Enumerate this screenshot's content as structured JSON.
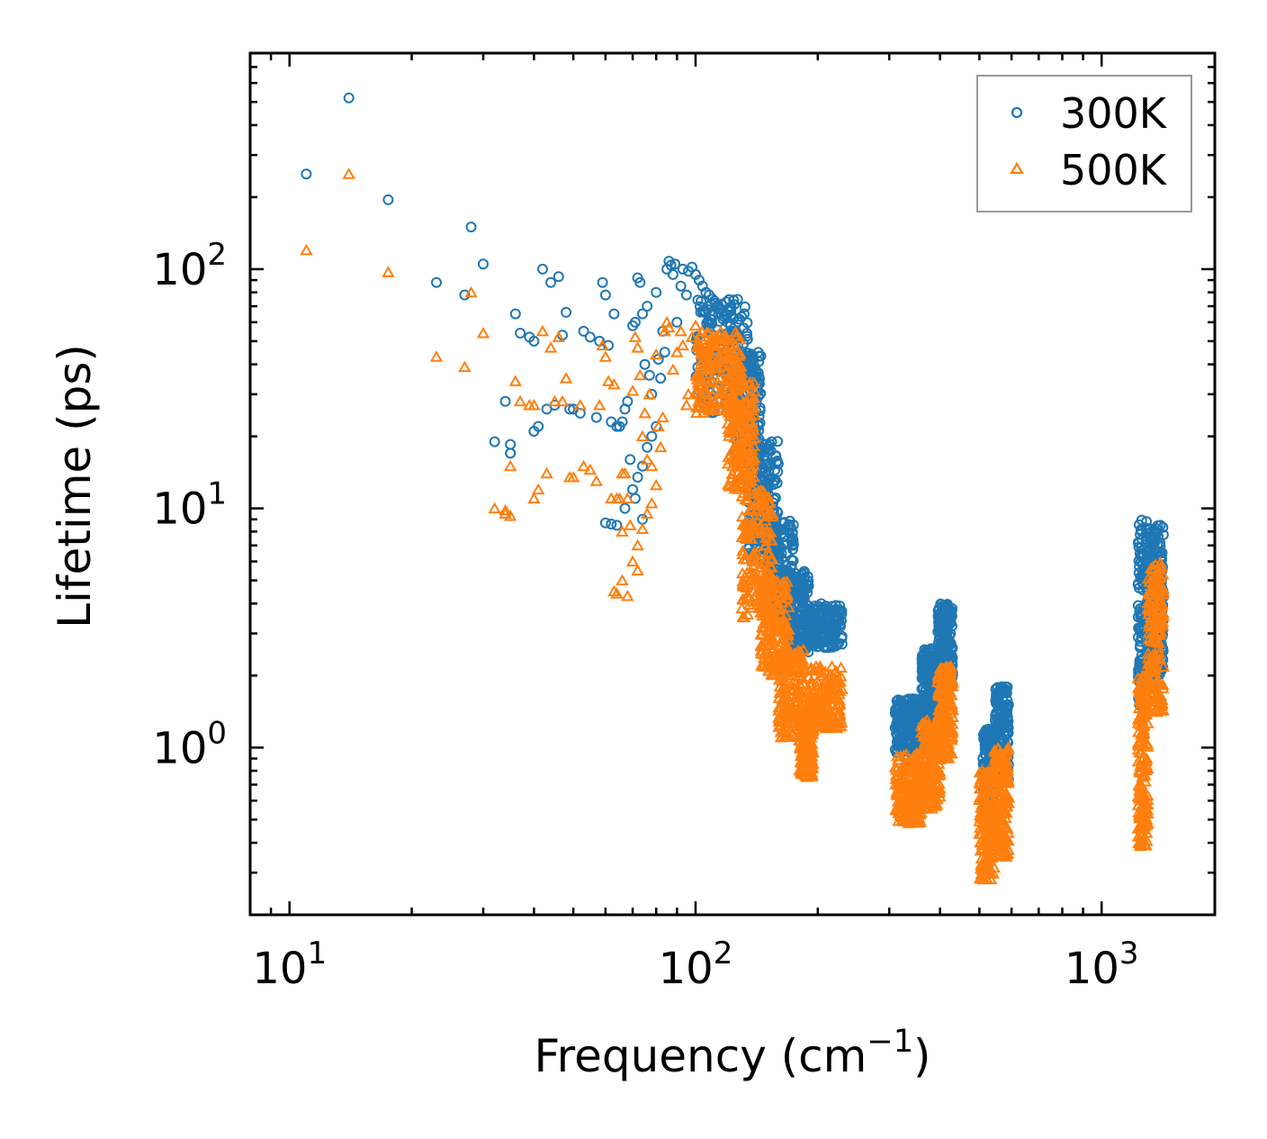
{
  "chart_data": {
    "type": "scatter",
    "xscale": "log",
    "yscale": "log",
    "xlabel": "Frequency (cm",
    "xlabel_sup": "−1",
    "xlabel_tail": ")",
    "ylabel": "Lifetime (ps)",
    "xlim": [
      8,
      1900
    ],
    "ylim": [
      0.2,
      800
    ],
    "x_ticks": [
      {
        "value": 10,
        "base": "10",
        "exp": "1"
      },
      {
        "value": 100,
        "base": "10",
        "exp": "2"
      },
      {
        "value": 1000,
        "base": "10",
        "exp": "3"
      }
    ],
    "y_ticks": [
      {
        "value": 1,
        "base": "10",
        "exp": "0"
      },
      {
        "value": 10,
        "base": "10",
        "exp": "1"
      },
      {
        "value": 100,
        "base": "10",
        "exp": "2"
      }
    ],
    "legend_position": "top-right",
    "series": [
      {
        "name": "300K",
        "marker": "circle",
        "color": "#1f77b4",
        "points": [
          [
            11,
            250
          ],
          [
            14,
            520
          ],
          [
            17.5,
            195
          ],
          [
            23,
            88
          ],
          [
            27,
            78
          ],
          [
            28,
            150
          ],
          [
            30,
            105
          ],
          [
            32,
            19
          ],
          [
            34,
            28
          ],
          [
            35,
            17
          ],
          [
            35,
            18.5
          ],
          [
            36,
            65
          ],
          [
            37,
            54
          ],
          [
            39,
            52
          ],
          [
            40,
            50
          ],
          [
            40,
            21
          ],
          [
            41,
            22
          ],
          [
            42,
            100
          ],
          [
            43,
            26
          ],
          [
            44,
            88
          ],
          [
            45,
            27
          ],
          [
            46,
            93
          ],
          [
            47,
            53
          ],
          [
            48,
            66
          ],
          [
            49,
            26
          ],
          [
            50,
            26
          ],
          [
            52,
            25
          ],
          [
            53,
            55
          ],
          [
            55,
            52
          ],
          [
            57,
            24
          ],
          [
            58,
            50
          ],
          [
            59,
            88
          ],
          [
            60,
            78
          ],
          [
            61,
            48
          ],
          [
            62,
            23
          ],
          [
            63,
            65
          ],
          [
            64,
            22
          ],
          [
            65,
            22
          ],
          [
            66,
            23
          ],
          [
            67,
            26
          ],
          [
            68,
            28
          ],
          [
            70,
            58
          ],
          [
            71,
            60
          ],
          [
            72,
            92
          ],
          [
            73,
            88
          ],
          [
            74,
            65
          ],
          [
            75,
            40
          ],
          [
            76,
            70
          ],
          [
            77,
            36
          ],
          [
            78,
            30
          ],
          [
            80,
            80
          ],
          [
            81,
            42
          ],
          [
            82,
            35
          ],
          [
            83,
            55
          ],
          [
            84,
            45
          ],
          [
            85,
            100
          ],
          [
            86,
            108
          ],
          [
            87,
            104
          ],
          [
            88,
            95
          ],
          [
            89,
            105
          ],
          [
            90,
            60
          ],
          [
            92,
            85
          ],
          [
            93,
            100
          ],
          [
            95,
            78
          ],
          [
            96,
            98
          ],
          [
            98,
            102
          ],
          [
            100,
            95
          ],
          [
            102,
            90
          ],
          [
            104,
            85
          ],
          [
            106,
            80
          ],
          [
            108,
            78
          ],
          [
            110,
            75
          ],
          [
            112,
            72
          ],
          [
            115,
            68
          ],
          [
            118,
            65
          ],
          [
            120,
            60
          ],
          [
            122,
            58
          ],
          [
            125,
            55
          ],
          [
            128,
            52
          ],
          [
            130,
            45
          ],
          [
            60,
            8.7
          ],
          [
            62,
            8.6
          ],
          [
            64,
            8.5
          ],
          [
            69,
            16
          ],
          [
            70,
            12
          ],
          [
            71,
            11
          ],
          [
            72,
            13.5
          ],
          [
            74,
            15
          ],
          [
            76,
            18
          ],
          [
            78,
            20
          ],
          [
            80,
            22
          ],
          [
            35,
            17
          ],
          [
            67,
            10
          ],
          [
            74,
            9
          ]
        ],
        "bands": [
          {
            "x": [
              100,
              135
            ],
            "y": [
              25,
              75
            ]
          },
          {
            "x": [
              125,
              145
            ],
            "y": [
              15,
              45
            ]
          },
          {
            "x": [
              135,
              160
            ],
            "y": [
              6,
              20
            ]
          },
          {
            "x": [
              150,
              175
            ],
            "y": [
              3.5,
              9
            ]
          },
          {
            "x": [
              165,
              190
            ],
            "y": [
              2.5,
              5.5
            ]
          },
          {
            "x": [
              185,
              230
            ],
            "y": [
              2.6,
              4.0
            ]
          },
          {
            "x": [
              310,
              360
            ],
            "y": [
              0.95,
              1.6
            ]
          },
          {
            "x": [
              360,
              400
            ],
            "y": [
              1.2,
              2.6
            ]
          },
          {
            "x": [
              395,
              430
            ],
            "y": [
              1.8,
              4.0
            ]
          },
          {
            "x": [
              510,
              545
            ],
            "y": [
              0.5,
              1.2
            ]
          },
          {
            "x": [
              545,
              590
            ],
            "y": [
              0.7,
              1.8
            ]
          },
          {
            "x": [
              1230,
              1330
            ],
            "y": [
              1.5,
              9
            ]
          },
          {
            "x": [
              1330,
              1420
            ],
            "y": [
              2.0,
              8.5
            ]
          }
        ]
      },
      {
        "name": "500K",
        "marker": "triangle",
        "color": "#ff7f0e",
        "points": [
          [
            11,
            120
          ],
          [
            14,
            250
          ],
          [
            17.5,
            97
          ],
          [
            23,
            43
          ],
          [
            27,
            39
          ],
          [
            28,
            80
          ],
          [
            30,
            54
          ],
          [
            32,
            10
          ],
          [
            34,
            9.8
          ],
          [
            35,
            9.3
          ],
          [
            35,
            15
          ],
          [
            36,
            34
          ],
          [
            37,
            28
          ],
          [
            39,
            27
          ],
          [
            40,
            27
          ],
          [
            40,
            11
          ],
          [
            41,
            12
          ],
          [
            42,
            55
          ],
          [
            43,
            14
          ],
          [
            44,
            47
          ],
          [
            45,
            28
          ],
          [
            46,
            52
          ],
          [
            47,
            28
          ],
          [
            48,
            35
          ],
          [
            49,
            13.5
          ],
          [
            50,
            13.5
          ],
          [
            52,
            27
          ],
          [
            53,
            15
          ],
          [
            55,
            14.5
          ],
          [
            57,
            13
          ],
          [
            58,
            27
          ],
          [
            59,
            48
          ],
          [
            60,
            43
          ],
          [
            61,
            34
          ],
          [
            62,
            11
          ],
          [
            63,
            33
          ],
          [
            64,
            11
          ],
          [
            65,
            11
          ],
          [
            66,
            14
          ],
          [
            67,
            14
          ],
          [
            68,
            11
          ],
          [
            70,
            31
          ],
          [
            71,
            52
          ],
          [
            72,
            47
          ],
          [
            73,
            36
          ],
          [
            74,
            20
          ],
          [
            75,
            25
          ],
          [
            76,
            16
          ],
          [
            77,
            30
          ],
          [
            78,
            15
          ],
          [
            80,
            44
          ],
          [
            81,
            22
          ],
          [
            82,
            18
          ],
          [
            83,
            24
          ],
          [
            84,
            55
          ],
          [
            85,
            60
          ],
          [
            86,
            57
          ],
          [
            88,
            38
          ],
          [
            90,
            45
          ],
          [
            92,
            55
          ],
          [
            93,
            48
          ],
          [
            95,
            27
          ],
          [
            96,
            30
          ],
          [
            98,
            52
          ],
          [
            100,
            58
          ],
          [
            103,
            40
          ],
          [
            106,
            45
          ],
          [
            110,
            50
          ],
          [
            63,
            4.5
          ],
          [
            64,
            4.4
          ],
          [
            66,
            5.0
          ],
          [
            68,
            4.3
          ],
          [
            69,
            8.5
          ],
          [
            70,
            6.0
          ],
          [
            72,
            7.0
          ],
          [
            74,
            8.2
          ],
          [
            76,
            9.5
          ],
          [
            78,
            10.5
          ],
          [
            80,
            12.5
          ],
          [
            34,
            9.5
          ],
          [
            66,
            8.0
          ],
          [
            72,
            5.5
          ]
        ],
        "bands": [
          {
            "x": [
              100,
              130
            ],
            "y": [
              25,
              55
            ]
          },
          {
            "x": [
              120,
              140
            ],
            "y": [
              12,
              35
            ]
          },
          {
            "x": [
              130,
              155
            ],
            "y": [
              3.5,
              12
            ]
          },
          {
            "x": [
              145,
              170
            ],
            "y": [
              2.0,
              5
            ]
          },
          {
            "x": [
              160,
              185
            ],
            "y": [
              1.1,
              2.6
            ]
          },
          {
            "x": [
              180,
              195
            ],
            "y": [
              0.75,
              1.4
            ]
          },
          {
            "x": [
              190,
              230
            ],
            "y": [
              1.2,
              2.2
            ]
          },
          {
            "x": [
              310,
              360
            ],
            "y": [
              0.48,
              0.95
            ]
          },
          {
            "x": [
              360,
              400
            ],
            "y": [
              0.55,
              1.3
            ]
          },
          {
            "x": [
              395,
              430
            ],
            "y": [
              0.9,
              2.2
            ]
          },
          {
            "x": [
              500,
              545
            ],
            "y": [
              0.28,
              0.8
            ]
          },
          {
            "x": [
              545,
              590
            ],
            "y": [
              0.35,
              1.0
            ]
          },
          {
            "x": [
              1230,
              1300
            ],
            "y": [
              0.38,
              2.0
            ]
          },
          {
            "x": [
              1300,
              1420
            ],
            "y": [
              1.4,
              6.0
            ]
          }
        ]
      }
    ]
  }
}
